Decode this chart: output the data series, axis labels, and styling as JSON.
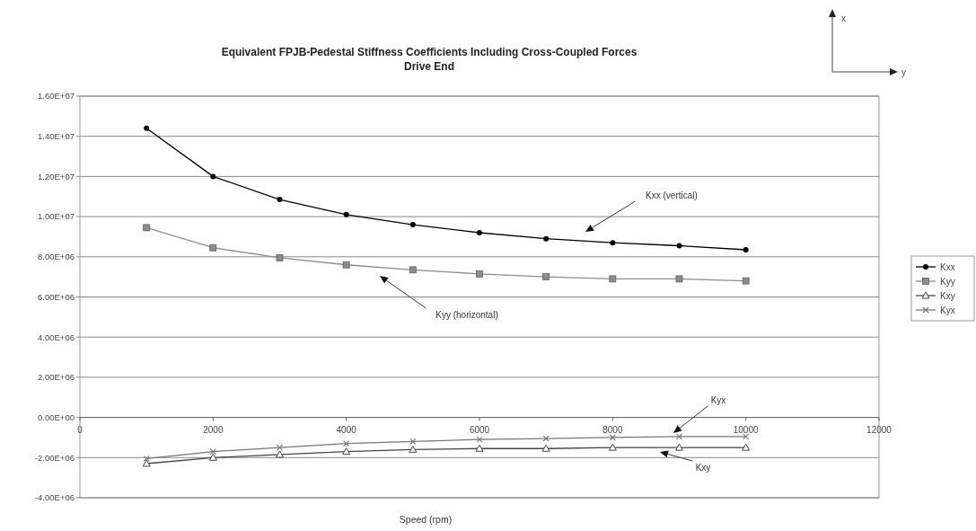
{
  "chart_data": {
    "type": "line",
    "title": "Equivalent FPJB-Pedestal Stiffness Coefficients Including Cross-Coupled Forces",
    "subtitle": "Drive End",
    "xlabel": "Speed (rpm)",
    "x": [
      1000,
      2000,
      3000,
      4000,
      5000,
      6000,
      7000,
      8000,
      9000,
      10000
    ],
    "series": [
      {
        "name": "Kxx",
        "color": "#000000",
        "marker": "circle",
        "values": [
          14400000,
          12000000,
          10850000,
          10100000,
          9600000,
          9200000,
          8900000,
          8700000,
          8550000,
          8350000
        ]
      },
      {
        "name": "Kyy",
        "color": "#8c8c8c",
        "marker": "square",
        "values": [
          9450000,
          8450000,
          7950000,
          7600000,
          7350000,
          7150000,
          7000000,
          6900000,
          6900000,
          6800000
        ]
      },
      {
        "name": "Kxy",
        "color": "#444444",
        "marker": "triangle",
        "values": [
          -2300000,
          -2000000,
          -1850000,
          -1700000,
          -1600000,
          -1550000,
          -1550000,
          -1500000,
          -1500000,
          -1500000
        ]
      },
      {
        "name": "Kyx",
        "color": "#777777",
        "marker": "cross",
        "values": [
          -2050000,
          -1700000,
          -1500000,
          -1300000,
          -1200000,
          -1100000,
          -1050000,
          -1000000,
          -950000,
          -950000
        ]
      }
    ],
    "xlim": [
      0,
      12000
    ],
    "xticks": [
      0,
      2000,
      4000,
      6000,
      8000,
      10000,
      12000
    ],
    "ylim": [
      -4000000,
      16000000
    ],
    "yticks": [
      {
        "value": -4000000,
        "label": "-4.00E+06"
      },
      {
        "value": -2000000,
        "label": "-2.00E+06"
      },
      {
        "value": 0,
        "label": "0.00E+00"
      },
      {
        "value": 2000000,
        "label": "2.00E+06"
      },
      {
        "value": 4000000,
        "label": "4.00E+06"
      },
      {
        "value": 6000000,
        "label": "6.00E+06"
      },
      {
        "value": 8000000,
        "label": "8.00E+06"
      },
      {
        "value": 10000000,
        "label": "1.00E+07"
      },
      {
        "value": 12000000,
        "label": "1.20E+07"
      },
      {
        "value": 14000000,
        "label": "1.40E+07"
      },
      {
        "value": 16000000,
        "label": "1.60E+07"
      }
    ],
    "grid": "y",
    "legend": "right",
    "annotations": [
      "Kxx (vertical)",
      "Kyy (horizontal)",
      "Kyx",
      "Kxy",
      "x",
      "y"
    ]
  }
}
